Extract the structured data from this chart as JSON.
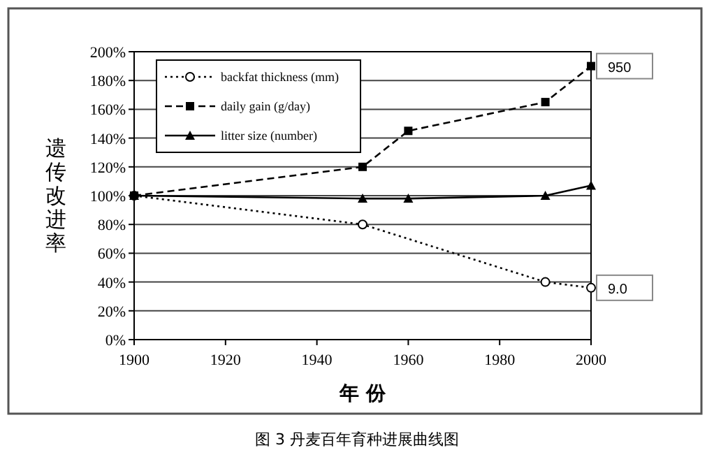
{
  "chart_data": {
    "type": "line",
    "xlabel": "年 份",
    "ylabel": "遗传改进率",
    "x": [
      1900,
      1950,
      1960,
      1990,
      2000
    ],
    "series": [
      {
        "name": "backfat thickness (mm)",
        "color": "#000000",
        "marker": "circle",
        "line_style": "dotted",
        "x": [
          1900,
          1950,
          1990,
          2000
        ],
        "values": [
          100,
          80,
          40,
          36
        ]
      },
      {
        "name": "daily gain (g/day)",
        "color": "#000000",
        "marker": "square",
        "line_style": "dashed",
        "values": [
          100,
          120,
          145,
          165,
          190
        ]
      },
      {
        "name": "litter size (number)",
        "color": "#000000",
        "marker": "triangle",
        "line_style": "solid",
        "values": [
          100,
          98,
          98,
          100,
          107
        ]
      }
    ],
    "xlim": [
      1900,
      2000
    ],
    "xticks": [
      1900,
      1920,
      1940,
      1960,
      1980,
      2000
    ],
    "ylim": [
      0,
      200
    ],
    "yticks": [
      {
        "value": 0,
        "label": "0%"
      },
      {
        "value": 20,
        "label": "20%"
      },
      {
        "value": 40,
        "label": "40%"
      },
      {
        "value": 60,
        "label": "60%"
      },
      {
        "value": 80,
        "label": "80%"
      },
      {
        "value": 100,
        "label": "100%"
      },
      {
        "value": 120,
        "label": "120%"
      },
      {
        "value": 140,
        "label": "140%"
      },
      {
        "value": 160,
        "label": "160%"
      },
      {
        "value": 180,
        "label": "180%"
      },
      {
        "value": 200,
        "label": "200%"
      }
    ],
    "grid": "y",
    "legend": "top left",
    "annotations": [
      {
        "text": "950",
        "x": 2000,
        "y": 190
      },
      {
        "text": "9.0",
        "x": 2000,
        "y": 36
      },
      "图 3 丹麦百年育种进展曲线图"
    ]
  }
}
